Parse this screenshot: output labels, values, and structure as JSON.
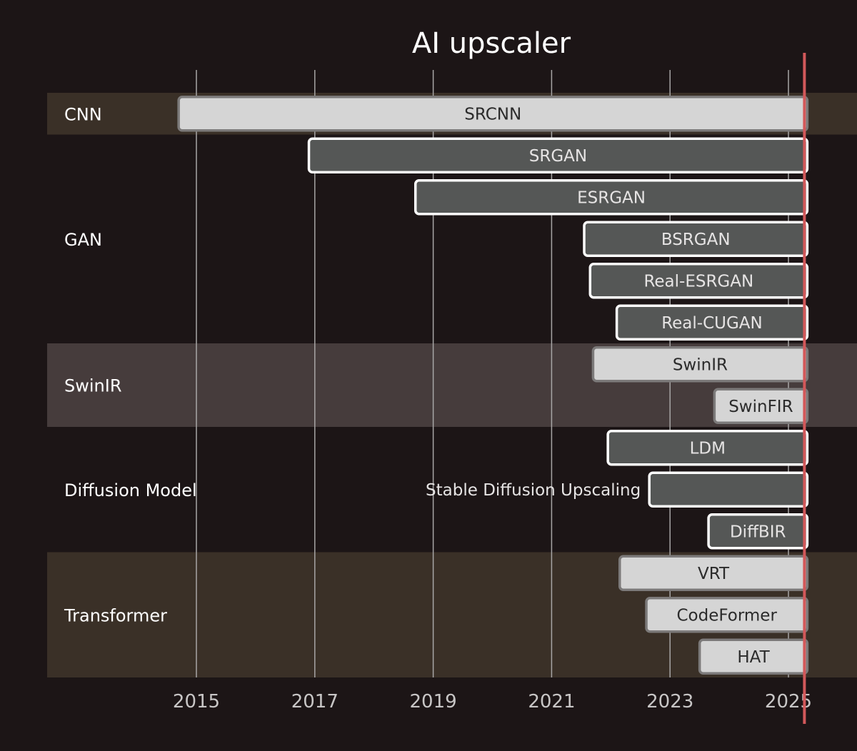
{
  "chart_data": {
    "type": "timeline",
    "title": "AI upscaler",
    "x_ticks": [
      2015,
      2017,
      2019,
      2021,
      2023,
      2025
    ],
    "xlim": [
      2012.5,
      2026.2
    ],
    "current_date": 2025.27,
    "groups": [
      {
        "name": "CNN",
        "color": "#3a3027",
        "items": [
          {
            "label": "SRCNN",
            "start": 2014.7,
            "style": "light"
          }
        ]
      },
      {
        "name": "GAN",
        "color": "#1c1516",
        "items": [
          {
            "label": "SRGAN",
            "start": 2016.9,
            "style": "dark"
          },
          {
            "label": "ESRGAN",
            "start": 2018.7,
            "style": "dark"
          },
          {
            "label": "BSRGAN",
            "start": 2021.55,
            "style": "dark"
          },
          {
            "label": "Real-ESRGAN",
            "start": 2021.65,
            "style": "dark"
          },
          {
            "label": "Real-CUGAN",
            "start": 2022.1,
            "style": "dark"
          }
        ]
      },
      {
        "name": "SwinIR",
        "color": "#463c3c",
        "items": [
          {
            "label": "SwinIR",
            "start": 2021.7,
            "style": "light"
          },
          {
            "label": "SwinFIR",
            "start": 2023.75,
            "style": "light"
          }
        ]
      },
      {
        "name": "Diffusion Model",
        "color": "#1c1516",
        "items": [
          {
            "label": "LDM",
            "start": 2021.95,
            "style": "dark"
          },
          {
            "label": "Stable Diffusion Upscaling",
            "start": 2022.65,
            "style": "dark",
            "label_outside": true
          },
          {
            "label": "DiffBIR",
            "start": 2023.65,
            "style": "dark"
          }
        ]
      },
      {
        "name": "Transformer",
        "color": "#3a3027",
        "items": [
          {
            "label": "VRT",
            "start": 2022.15,
            "style": "light"
          },
          {
            "label": "CodeFormer",
            "start": 2022.6,
            "style": "light"
          },
          {
            "label": "HAT",
            "start": 2023.5,
            "style": "light"
          }
        ]
      }
    ]
  }
}
